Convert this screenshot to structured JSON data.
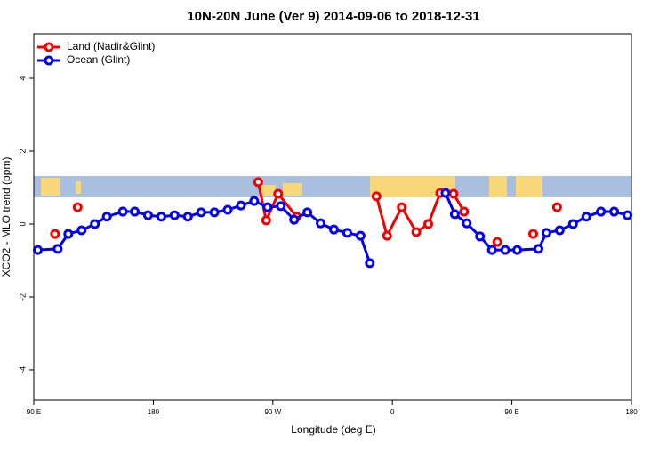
{
  "chart_data": {
    "type": "line",
    "title": "10N-20N June (Ver 9)   2014-09-06 to 2018-12-31",
    "x_label": "Longitude (deg E)",
    "y_label": "XCO2 - MLO trend (ppm)",
    "xlim": [
      90,
      540
    ],
    "xticks": [
      {
        "value": 90,
        "label": "90 E"
      },
      {
        "value": 180,
        "label": "180"
      },
      {
        "value": 270,
        "label": "90 W"
      },
      {
        "value": 360,
        "label": "0"
      },
      {
        "value": 450,
        "label": "90 E"
      },
      {
        "value": 540,
        "label": "180"
      }
    ],
    "ylim": [
      -4.83,
      5.22
    ],
    "yticks": [
      -4,
      -2,
      0,
      2,
      4
    ],
    "legend": "top-left",
    "series": [
      {
        "name": "Land (Nadir&Glint)",
        "color": "#ee0000",
        "x": [
          106,
          null,
          123,
          null,
          259,
          265,
          274,
          288,
          null,
          348,
          356,
          367,
          378,
          387,
          396,
          406,
          414,
          null,
          439,
          null,
          466,
          null,
          484
        ],
        "values": [
          -0.27,
          null,
          0.46,
          null,
          1.15,
          0.1,
          0.83,
          0.2,
          null,
          0.76,
          -0.32,
          0.46,
          -0.22,
          0,
          0.85,
          0.83,
          0.34,
          null,
          -0.49,
          null,
          -0.27,
          null,
          0.46
        ]
      },
      {
        "name": "Ocean (Glint)",
        "color": "#0000ee",
        "x": [
          93,
          108,
          116,
          126,
          136,
          145,
          157,
          166,
          176,
          186,
          196,
          206,
          216,
          226,
          236,
          246,
          256,
          266,
          276,
          286,
          296,
          306,
          316,
          326,
          336,
          343,
          null,
          400,
          407,
          416,
          426,
          435,
          445,
          454,
          470,
          476,
          486,
          496,
          506,
          517,
          527,
          537
        ],
        "values": [
          -0.71,
          -0.68,
          -0.27,
          -0.17,
          0,
          0.2,
          0.34,
          0.34,
          0.24,
          0.2,
          0.24,
          0.2,
          0.32,
          0.32,
          0.39,
          0.51,
          0.63,
          0.46,
          0.49,
          0.12,
          0.32,
          0.02,
          -0.15,
          -0.24,
          -0.32,
          -1.07,
          null,
          0.85,
          0.27,
          0.02,
          -0.34,
          -0.71,
          -0.71,
          -0.71,
          -0.68,
          -0.24,
          -0.17,
          0,
          0.2,
          0.34,
          0.34,
          0.24
        ]
      }
    ]
  }
}
